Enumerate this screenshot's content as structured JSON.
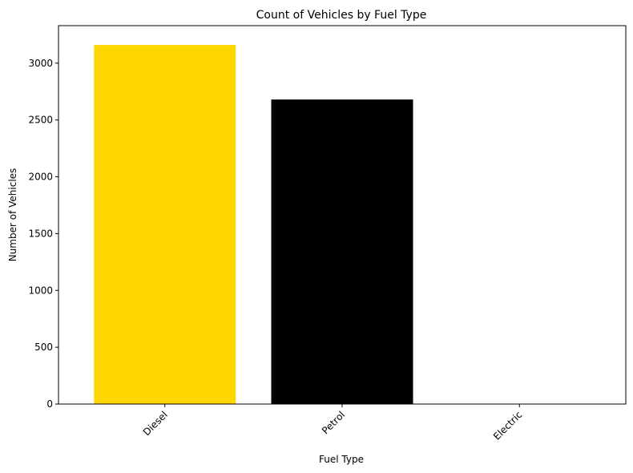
{
  "chart_data": {
    "type": "bar",
    "title": "Count of Vehicles by Fuel Type",
    "xlabel": "Fuel Type",
    "ylabel": "Number of Vehicles",
    "categories": [
      "Diesel",
      "Petrol",
      "Electric"
    ],
    "values": [
      3160,
      2680,
      0
    ],
    "colors": [
      "#FFD700",
      "#000000",
      "#FFFFFF"
    ],
    "ylim": [
      0,
      3330
    ],
    "yticks": [
      0,
      500,
      1000,
      1500,
      2000,
      2500,
      3000
    ],
    "grid": false,
    "legend": "none"
  }
}
